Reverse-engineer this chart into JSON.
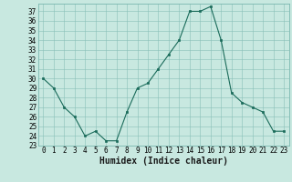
{
  "x": [
    0,
    1,
    2,
    3,
    4,
    5,
    6,
    7,
    8,
    9,
    10,
    11,
    12,
    13,
    14,
    15,
    16,
    17,
    18,
    19,
    20,
    21,
    22,
    23
  ],
  "y": [
    30,
    29,
    27,
    26,
    24,
    24.5,
    23.5,
    23.5,
    26.5,
    29,
    29.5,
    31,
    32.5,
    34,
    37,
    37,
    37.5,
    34,
    28.5,
    27.5,
    27,
    26.5,
    24.5,
    24.5
  ],
  "line_color": "#1a6b5a",
  "marker_color": "#1a6b5a",
  "bg_color": "#c8e8e0",
  "grid_color": "#88bfb8",
  "xlabel": "Humidex (Indice chaleur)",
  "ylim_min": 23,
  "ylim_max": 37.8,
  "xlim_min": -0.5,
  "xlim_max": 23.5,
  "yticks": [
    23,
    24,
    25,
    26,
    27,
    28,
    29,
    30,
    31,
    32,
    33,
    34,
    35,
    36,
    37
  ],
  "xticks": [
    0,
    1,
    2,
    3,
    4,
    5,
    6,
    7,
    8,
    9,
    10,
    11,
    12,
    13,
    14,
    15,
    16,
    17,
    18,
    19,
    20,
    21,
    22,
    23
  ],
  "tick_fontsize": 5.5,
  "xlabel_fontsize": 7
}
